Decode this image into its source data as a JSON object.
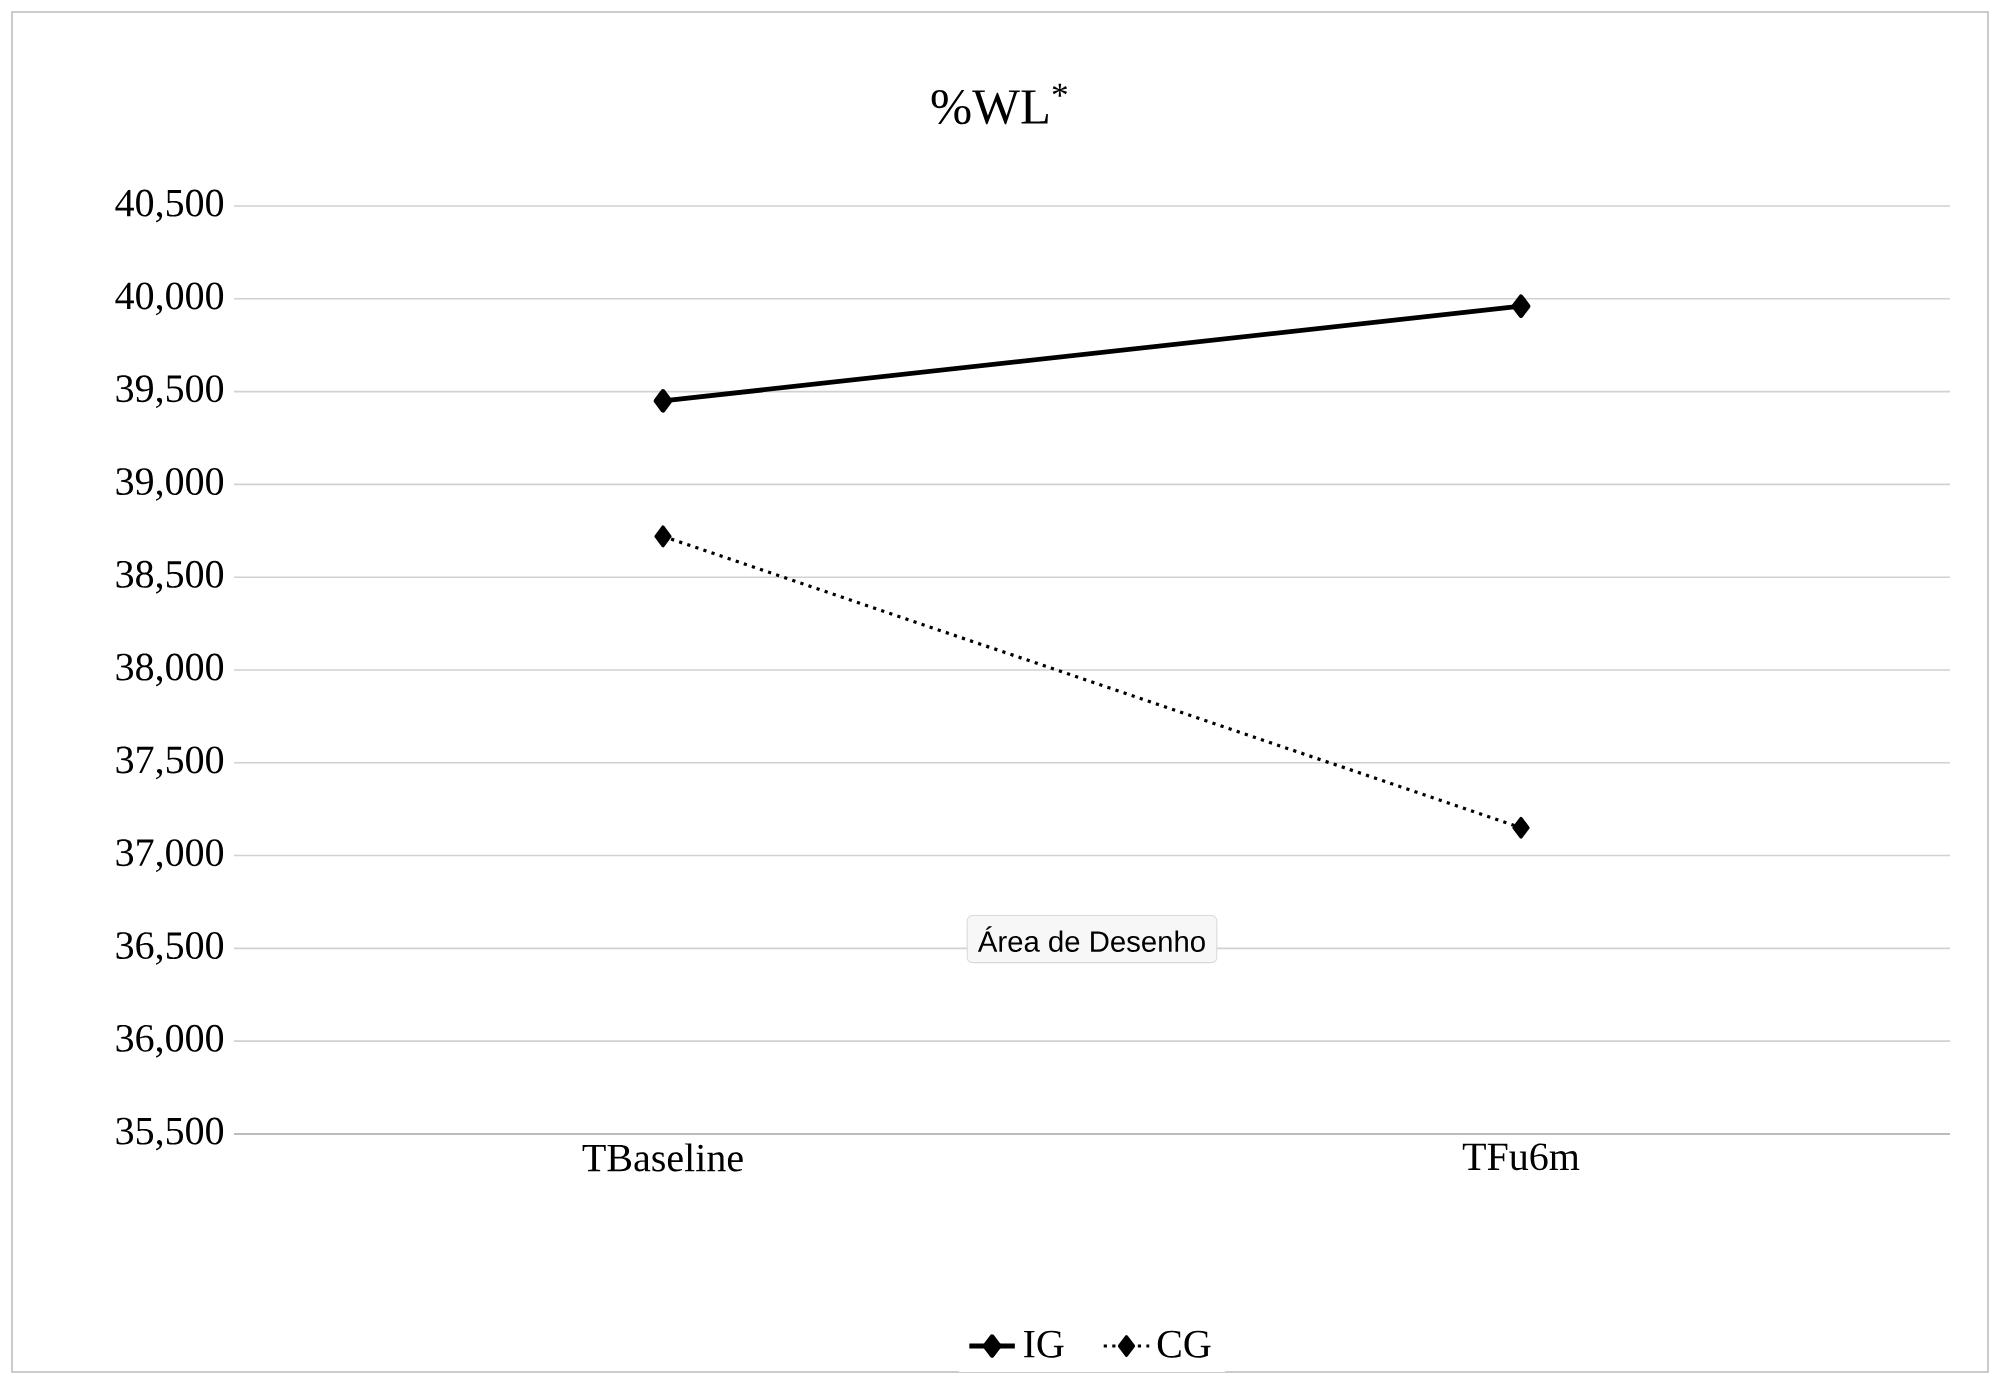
{
  "chart_data": {
    "type": "line",
    "title": "%WL$^{*}$",
    "categories": [
      "TBaseline",
      "TFu6m"
    ],
    "series": [
      {
        "name": "IG",
        "color": "#000000",
        "values": [
          39450,
          39960
        ],
        "line_style": "solid"
      },
      {
        "name": "CG",
        "color": "#000000",
        "values": [
          38720,
          37150
        ],
        "line_style": "dotted"
      }
    ],
    "ylim": [
      35500,
      40500
    ],
    "yticks": [
      {
        "value": 35500,
        "label": "35,500"
      },
      {
        "value": 36000,
        "label": "36,000"
      },
      {
        "value": 36500,
        "label": "36,500"
      },
      {
        "value": 37000,
        "label": "37,000"
      },
      {
        "value": 37500,
        "label": "37,500"
      },
      {
        "value": 38000,
        "label": "38,000"
      },
      {
        "value": 38500,
        "label": "38,500"
      },
      {
        "value": 39000,
        "label": "39,000"
      },
      {
        "value": 39500,
        "label": "39,500"
      },
      {
        "value": 40000,
        "label": "40,000"
      },
      {
        "value": 40500,
        "label": "40,500"
      }
    ],
    "grid": "y",
    "legend": "bottom",
    "marker": "diamond",
    "annotations": [
      "Área de Desenho"
    ]
  }
}
